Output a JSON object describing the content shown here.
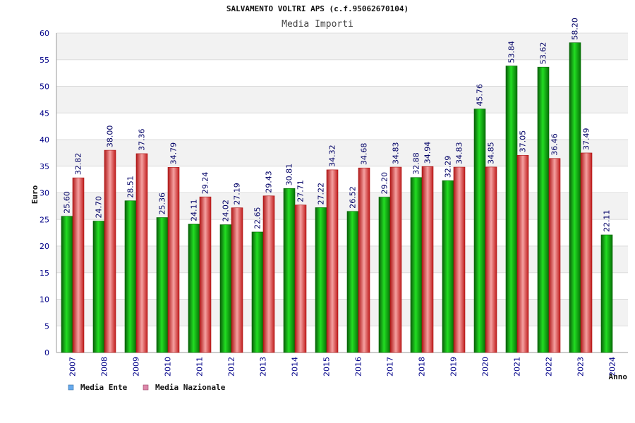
{
  "chart_data": {
    "type": "bar",
    "title": "SALVAMENTO VOLTRI APS (c.f.95062670104)",
    "subtitle": "Media Importi",
    "xlabel": "Anno",
    "ylabel": "Euro",
    "ylim": [
      0,
      60
    ],
    "yticks": [
      "0",
      "5",
      "10",
      "15",
      "20",
      "25",
      "30",
      "35",
      "40",
      "45",
      "50",
      "55",
      "60"
    ],
    "grid": true,
    "legend_position": "bottom-left",
    "categories": [
      "2007",
      "2008",
      "2009",
      "2010",
      "2011",
      "2012",
      "2013",
      "2014",
      "2015",
      "2016",
      "2017",
      "2018",
      "2019",
      "2020",
      "2021",
      "2022",
      "2023",
      "2024"
    ],
    "series": [
      {
        "name": "Media Ente",
        "color": "#00aa00",
        "legend_color": "#66aaee",
        "values": [
          25.6,
          24.7,
          28.51,
          25.36,
          24.11,
          24.02,
          22.65,
          30.81,
          27.22,
          26.52,
          29.2,
          32.88,
          32.29,
          45.76,
          53.84,
          53.62,
          58.2,
          22.11
        ],
        "labels": [
          "25.60",
          "24.70",
          "28.51",
          "25.36",
          "24.11",
          "24.02",
          "22.65",
          "30.81",
          "27.22",
          "26.52",
          "29.20",
          "32.88",
          "32.29",
          "45.76",
          "53.84",
          "53.62",
          "58.20",
          "22.11"
        ]
      },
      {
        "name": "Media Nazionale",
        "color": "#dd2222",
        "legend_color": "#dd88aa",
        "values": [
          32.82,
          38.0,
          37.36,
          34.79,
          29.24,
          27.19,
          29.43,
          27.71,
          34.32,
          34.68,
          34.83,
          34.94,
          34.83,
          34.85,
          37.05,
          36.46,
          37.49,
          null
        ],
        "labels": [
          "32.82",
          "38.00",
          "37.36",
          "34.79",
          "29.24",
          "27.19",
          "29.43",
          "27.71",
          "34.32",
          "34.68",
          "34.83",
          "34.94",
          "34.83",
          "34.85",
          "37.05",
          "36.46",
          "37.49",
          ""
        ]
      }
    ]
  }
}
